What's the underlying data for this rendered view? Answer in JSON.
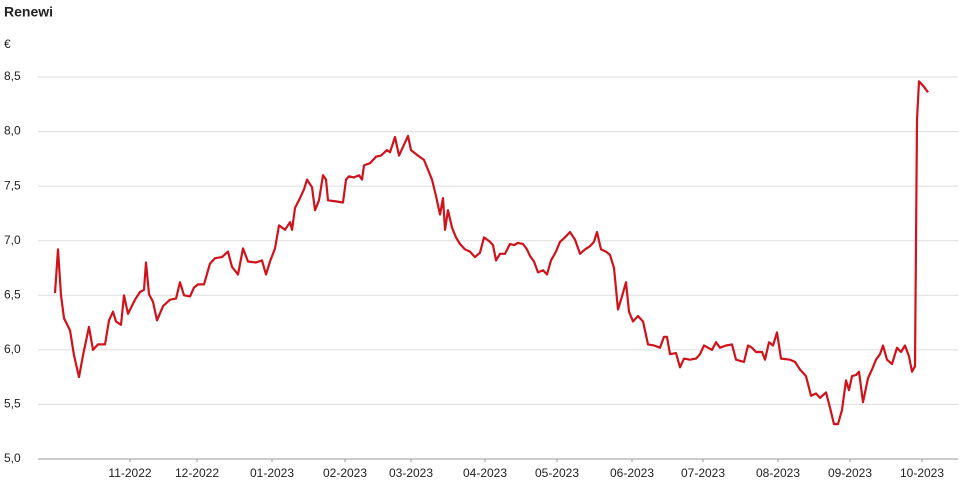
{
  "chart_data": {
    "type": "line",
    "title": "Renewi",
    "y_label": "€",
    "x": [
      0,
      3,
      6,
      9,
      15,
      19,
      24,
      28,
      34,
      38,
      43,
      50,
      54,
      58,
      61,
      66,
      69,
      73,
      80,
      85,
      89,
      91,
      94,
      98,
      102,
      108,
      115,
      121,
      125,
      129,
      135,
      139,
      143,
      149,
      155,
      160,
      167,
      173,
      177,
      183,
      188,
      193,
      201,
      207,
      211,
      215,
      220,
      224,
      230,
      235,
      237,
      240,
      245,
      249,
      252,
      257,
      260,
      264,
      268,
      271,
      273,
      281,
      288,
      291,
      294,
      299,
      304,
      307,
      309,
      315,
      321,
      326,
      332,
      335,
      340,
      344,
      348,
      353,
      356,
      363,
      369,
      373,
      377,
      381,
      385,
      388,
      390,
      393,
      397,
      401,
      405,
      410,
      415,
      420,
      425,
      429,
      435,
      438,
      441,
      445,
      450,
      455,
      459,
      463,
      468,
      472,
      475,
      479,
      483,
      488,
      492,
      496,
      501,
      505,
      510,
      515,
      520,
      525,
      530,
      535,
      539,
      542,
      546,
      551,
      555,
      559,
      563,
      567,
      571,
      574,
      578,
      583,
      588,
      593,
      599,
      605,
      609,
      612,
      615,
      621,
      625,
      629,
      635,
      641,
      645,
      649,
      653,
      657,
      661,
      665,
      671,
      677,
      681,
      689,
      693,
      697,
      701,
      707,
      710,
      714,
      718,
      722,
      726,
      735,
      740,
      745,
      751,
      756,
      761,
      765,
      771,
      775,
      779,
      783,
      787,
      791,
      794,
      797,
      801,
      804,
      808,
      813,
      817,
      821,
      825,
      828,
      832,
      837,
      842,
      846,
      850,
      854,
      857,
      860,
      862,
      864,
      869,
      873
    ],
    "series": [
      {
        "name": "Renewi",
        "color": "#d0121b",
        "values": [
          6.52,
          6.92,
          6.5,
          6.29,
          6.18,
          5.95,
          5.75,
          5.95,
          6.21,
          6.0,
          6.05,
          6.05,
          6.27,
          6.35,
          6.26,
          6.23,
          6.5,
          6.33,
          6.46,
          6.53,
          6.55,
          6.8,
          6.51,
          6.44,
          6.27,
          6.4,
          6.46,
          6.47,
          6.62,
          6.5,
          6.49,
          6.57,
          6.6,
          6.6,
          6.79,
          6.84,
          6.85,
          6.9,
          6.76,
          6.69,
          6.93,
          6.81,
          6.8,
          6.82,
          6.69,
          6.81,
          6.93,
          7.14,
          7.1,
          7.17,
          7.1,
          7.3,
          7.39,
          7.47,
          7.56,
          7.49,
          7.28,
          7.37,
          7.6,
          7.56,
          7.37,
          7.36,
          7.35,
          7.56,
          7.59,
          7.58,
          7.6,
          7.56,
          7.69,
          7.71,
          7.77,
          7.78,
          7.83,
          7.81,
          7.95,
          7.78,
          7.86,
          7.96,
          7.83,
          7.78,
          7.74,
          7.65,
          7.56,
          7.41,
          7.24,
          7.39,
          7.1,
          7.28,
          7.12,
          7.03,
          6.97,
          6.92,
          6.9,
          6.85,
          6.89,
          7.03,
          6.99,
          6.96,
          6.82,
          6.88,
          6.88,
          6.97,
          6.96,
          6.98,
          6.97,
          6.92,
          6.86,
          6.81,
          6.71,
          6.73,
          6.69,
          6.82,
          6.9,
          6.99,
          7.03,
          7.08,
          7.01,
          6.88,
          6.92,
          6.95,
          6.99,
          7.08,
          6.92,
          6.9,
          6.87,
          6.75,
          6.37,
          6.49,
          6.62,
          6.35,
          6.26,
          6.31,
          6.26,
          6.05,
          6.04,
          6.02,
          6.12,
          6.12,
          5.96,
          5.97,
          5.84,
          5.92,
          5.91,
          5.92,
          5.96,
          6.04,
          6.02,
          6.0,
          6.07,
          6.02,
          6.04,
          6.05,
          5.91,
          5.89,
          6.04,
          6.02,
          5.98,
          5.98,
          5.91,
          6.07,
          6.04,
          6.16,
          5.92,
          5.91,
          5.89,
          5.82,
          5.76,
          5.58,
          5.6,
          5.56,
          5.61,
          5.47,
          5.32,
          5.32,
          5.45,
          5.72,
          5.63,
          5.76,
          5.77,
          5.8,
          5.52,
          5.74,
          5.82,
          5.91,
          5.96,
          6.04,
          5.91,
          5.87,
          6.02,
          5.98,
          6.04,
          5.94,
          5.8,
          5.85,
          8.11,
          8.46,
          8.41,
          8.36
        ]
      }
    ],
    "xlim": [
      -17,
      903
    ],
    "xticks": [
      {
        "value": 75,
        "label": "11-2022"
      },
      {
        "value": 142,
        "label": "12-2022"
      },
      {
        "value": 217,
        "label": "01-2023"
      },
      {
        "value": 290,
        "label": "02-2023"
      },
      {
        "value": 356,
        "label": "03-2023"
      },
      {
        "value": 430,
        "label": "04-2023"
      },
      {
        "value": 502,
        "label": "05-2023"
      },
      {
        "value": 577,
        "label": "06-2023"
      },
      {
        "value": 648,
        "label": "07-2023"
      },
      {
        "value": 723,
        "label": "08-2023"
      },
      {
        "value": 795,
        "label": "09-2023"
      },
      {
        "value": 867,
        "label": "10-2023"
      }
    ],
    "ylim": [
      5.0,
      8.5
    ],
    "yticks": [
      {
        "value": 5.0,
        "label": "5,0"
      },
      {
        "value": 5.5,
        "label": "5,5"
      },
      {
        "value": 6.0,
        "label": "6,0"
      },
      {
        "value": 6.5,
        "label": "6,5"
      },
      {
        "value": 7.0,
        "label": "7,0"
      },
      {
        "value": 7.5,
        "label": "7,5"
      },
      {
        "value": 8.0,
        "label": "8,0"
      },
      {
        "value": 8.5,
        "label": "8,5"
      }
    ],
    "grid": true
  }
}
